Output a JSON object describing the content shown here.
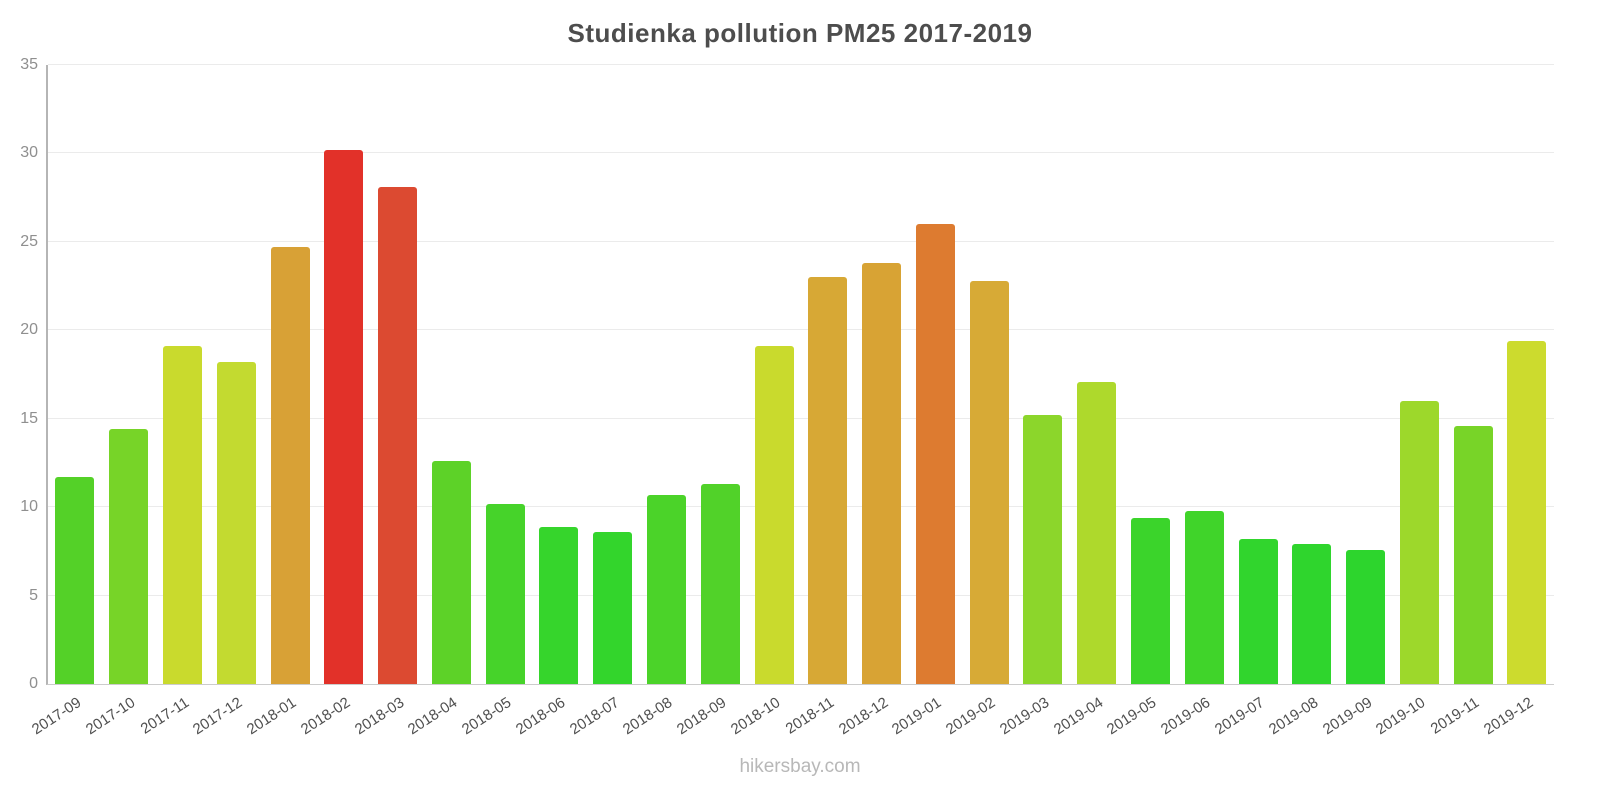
{
  "title": "Studienka pollution PM25 2017-2019",
  "footer": "hikersbay.com",
  "chart_data": {
    "type": "bar",
    "title": "Studienka pollution PM25 2017-2019",
    "categories": [
      "2017-09",
      "2017-10",
      "2017-11",
      "2017-12",
      "2018-01",
      "2018-02",
      "2018-03",
      "2018-04",
      "2018-05",
      "2018-06",
      "2018-07",
      "2018-08",
      "2018-09",
      "2018-10",
      "2018-11",
      "2018-12",
      "2019-01",
      "2019-02",
      "2019-03",
      "2019-04",
      "2019-05",
      "2019-06",
      "2019-07",
      "2019-08",
      "2019-09",
      "2019-10",
      "2019-11",
      "2019-12"
    ],
    "values": [
      11.7,
      14.4,
      19.1,
      18.2,
      24.7,
      30.2,
      28.1,
      12.6,
      10.2,
      8.9,
      8.6,
      10.7,
      11.3,
      19.1,
      23.0,
      23.8,
      26.0,
      22.8,
      15.2,
      17.1,
      9.4,
      9.8,
      8.2,
      7.9,
      7.6,
      16.0,
      14.6,
      19.4
    ],
    "colors": [
      "#54d128",
      "#77d428",
      "#c9da2d",
      "#c3da30",
      "#d8a136",
      "#e23129",
      "#dc4a31",
      "#5dd228",
      "#46d32a",
      "#36d52c",
      "#33d52c",
      "#4bd329",
      "#51d229",
      "#c9da2d",
      "#d7a835",
      "#d8a334",
      "#dd7b30",
      "#d7aa36",
      "#8cd62b",
      "#aed92c",
      "#3bd42b",
      "#40d42a",
      "#31d52d",
      "#2fd52d",
      "#2dd52d",
      "#9dd82b",
      "#78d428",
      "#ccdb2e"
    ],
    "xlabel": "",
    "ylabel": "",
    "ylim": [
      0,
      35
    ],
    "yticks": [
      0,
      5,
      10,
      15,
      20,
      25,
      30,
      35
    ],
    "grid": true,
    "legend": false
  }
}
